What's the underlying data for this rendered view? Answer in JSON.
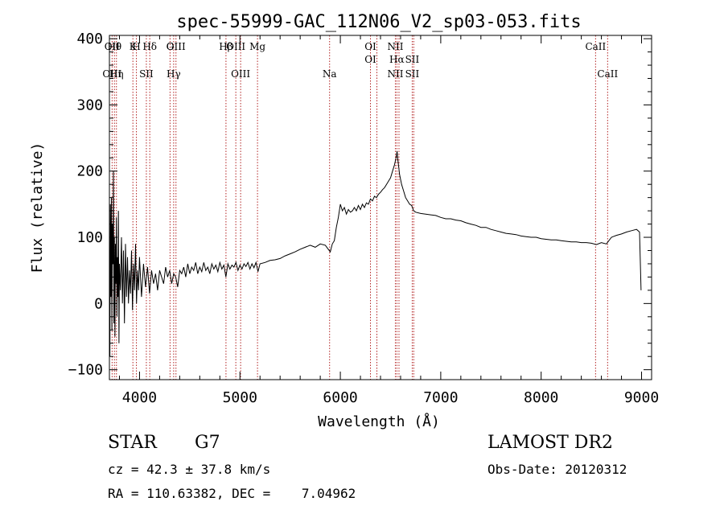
{
  "chart_data": {
    "type": "line",
    "title": "spec-55999-GAC_112N06_V2_sp03-053.fits",
    "xlabel": "Wavelength (Å)",
    "ylabel": "Flux (relative)",
    "xlim": [
      3700,
      9100
    ],
    "ylim": [
      -115,
      405
    ],
    "xticks": [
      4000,
      5000,
      6000,
      7000,
      8000,
      9000
    ],
    "yticks": [
      -100,
      0,
      100,
      200,
      300,
      400
    ],
    "grid": false,
    "series": [
      {
        "values": [
          [
            3700,
            40
          ],
          [
            3705,
            -80
          ],
          [
            3710,
            150
          ],
          [
            3715,
            10
          ],
          [
            3720,
            160
          ],
          [
            3725,
            -40
          ],
          [
            3730,
            120
          ],
          [
            3735,
            60
          ],
          [
            3740,
            200
          ],
          [
            3745,
            -30
          ],
          [
            3750,
            100
          ],
          [
            3755,
            -50
          ],
          [
            3760,
            90
          ],
          [
            3765,
            30
          ],
          [
            3770,
            130
          ],
          [
            3775,
            -20
          ],
          [
            3780,
            70
          ],
          [
            3785,
            10
          ],
          [
            3790,
            140
          ],
          [
            3795,
            -60
          ],
          [
            3800,
            60
          ],
          [
            3810,
            20
          ],
          [
            3820,
            100
          ],
          [
            3830,
            0
          ],
          [
            3840,
            80
          ],
          [
            3850,
            -30
          ],
          [
            3860,
            90
          ],
          [
            3870,
            10
          ],
          [
            3880,
            70
          ],
          [
            3890,
            0
          ],
          [
            3900,
            50
          ],
          [
            3910,
            15
          ],
          [
            3920,
            80
          ],
          [
            3930,
            -10
          ],
          [
            3940,
            60
          ],
          [
            3950,
            20
          ],
          [
            3960,
            90
          ],
          [
            3970,
            0
          ],
          [
            3980,
            50
          ],
          [
            3990,
            20
          ],
          [
            4000,
            70
          ],
          [
            4020,
            10
          ],
          [
            4040,
            60
          ],
          [
            4060,
            25
          ],
          [
            4080,
            55
          ],
          [
            4100,
            15
          ],
          [
            4120,
            50
          ],
          [
            4140,
            30
          ],
          [
            4160,
            45
          ],
          [
            4180,
            20
          ],
          [
            4200,
            50
          ],
          [
            4220,
            40
          ],
          [
            4240,
            30
          ],
          [
            4260,
            55
          ],
          [
            4280,
            40
          ],
          [
            4300,
            50
          ],
          [
            4320,
            30
          ],
          [
            4340,
            45
          ],
          [
            4360,
            40
          ],
          [
            4380,
            25
          ],
          [
            4400,
            50
          ],
          [
            4420,
            45
          ],
          [
            4440,
            55
          ],
          [
            4460,
            40
          ],
          [
            4480,
            60
          ],
          [
            4500,
            45
          ],
          [
            4520,
            55
          ],
          [
            4540,
            50
          ],
          [
            4560,
            62
          ],
          [
            4580,
            45
          ],
          [
            4600,
            55
          ],
          [
            4620,
            48
          ],
          [
            4640,
            62
          ],
          [
            4660,
            50
          ],
          [
            4680,
            55
          ],
          [
            4700,
            45
          ],
          [
            4720,
            60
          ],
          [
            4740,
            52
          ],
          [
            4760,
            58
          ],
          [
            4780,
            48
          ],
          [
            4800,
            62
          ],
          [
            4820,
            52
          ],
          [
            4840,
            58
          ],
          [
            4860,
            40
          ],
          [
            4880,
            60
          ],
          [
            4900,
            52
          ],
          [
            4920,
            58
          ],
          [
            4940,
            55
          ],
          [
            4960,
            62
          ],
          [
            4980,
            50
          ],
          [
            5000,
            58
          ],
          [
            5020,
            52
          ],
          [
            5040,
            60
          ],
          [
            5060,
            56
          ],
          [
            5080,
            62
          ],
          [
            5100,
            52
          ],
          [
            5120,
            60
          ],
          [
            5140,
            54
          ],
          [
            5160,
            62
          ],
          [
            5180,
            48
          ],
          [
            5200,
            60
          ],
          [
            5250,
            62
          ],
          [
            5300,
            65
          ],
          [
            5350,
            66
          ],
          [
            5400,
            68
          ],
          [
            5450,
            72
          ],
          [
            5500,
            75
          ],
          [
            5550,
            78
          ],
          [
            5600,
            82
          ],
          [
            5650,
            85
          ],
          [
            5700,
            88
          ],
          [
            5750,
            85
          ],
          [
            5800,
            90
          ],
          [
            5850,
            88
          ],
          [
            5880,
            82
          ],
          [
            5900,
            78
          ],
          [
            5920,
            90
          ],
          [
            5940,
            95
          ],
          [
            5960,
            115
          ],
          [
            5980,
            130
          ],
          [
            6000,
            150
          ],
          [
            6020,
            140
          ],
          [
            6040,
            145
          ],
          [
            6060,
            135
          ],
          [
            6080,
            142
          ],
          [
            6100,
            138
          ],
          [
            6120,
            140
          ],
          [
            6140,
            145
          ],
          [
            6160,
            140
          ],
          [
            6180,
            148
          ],
          [
            6200,
            142
          ],
          [
            6220,
            150
          ],
          [
            6240,
            145
          ],
          [
            6260,
            152
          ],
          [
            6280,
            150
          ],
          [
            6300,
            158
          ],
          [
            6320,
            155
          ],
          [
            6340,
            162
          ],
          [
            6360,
            160
          ],
          [
            6380,
            165
          ],
          [
            6400,
            168
          ],
          [
            6420,
            172
          ],
          [
            6440,
            175
          ],
          [
            6460,
            180
          ],
          [
            6480,
            185
          ],
          [
            6500,
            190
          ],
          [
            6520,
            200
          ],
          [
            6540,
            210
          ],
          [
            6555,
            220
          ],
          [
            6565,
            230
          ],
          [
            6575,
            215
          ],
          [
            6590,
            195
          ],
          [
            6610,
            180
          ],
          [
            6630,
            170
          ],
          [
            6650,
            160
          ],
          [
            6670,
            155
          ],
          [
            6690,
            150
          ],
          [
            6710,
            148
          ],
          [
            6730,
            140
          ],
          [
            6750,
            138
          ],
          [
            6800,
            136
          ],
          [
            6850,
            135
          ],
          [
            6900,
            134
          ],
          [
            6950,
            133
          ],
          [
            7000,
            130
          ],
          [
            7050,
            128
          ],
          [
            7100,
            128
          ],
          [
            7150,
            126
          ],
          [
            7200,
            125
          ],
          [
            7250,
            122
          ],
          [
            7300,
            120
          ],
          [
            7350,
            118
          ],
          [
            7400,
            115
          ],
          [
            7450,
            115
          ],
          [
            7500,
            112
          ],
          [
            7550,
            110
          ],
          [
            7600,
            108
          ],
          [
            7650,
            106
          ],
          [
            7700,
            105
          ],
          [
            7750,
            104
          ],
          [
            7800,
            102
          ],
          [
            7850,
            101
          ],
          [
            7900,
            100
          ],
          [
            7950,
            100
          ],
          [
            8000,
            98
          ],
          [
            8050,
            97
          ],
          [
            8100,
            96
          ],
          [
            8150,
            96
          ],
          [
            8200,
            95
          ],
          [
            8250,
            94
          ],
          [
            8300,
            93
          ],
          [
            8350,
            93
          ],
          [
            8400,
            92
          ],
          [
            8450,
            92
          ],
          [
            8500,
            91
          ],
          [
            8550,
            89
          ],
          [
            8600,
            92
          ],
          [
            8650,
            90
          ],
          [
            8700,
            100
          ],
          [
            8750,
            103
          ],
          [
            8800,
            105
          ],
          [
            8850,
            108
          ],
          [
            8900,
            110
          ],
          [
            8950,
            112
          ],
          [
            8980,
            108
          ],
          [
            8995,
            20
          ]
        ]
      }
    ],
    "lines": [
      {
        "x": 3727,
        "top": "OII",
        "bottom": "OIII"
      },
      {
        "x": 3750,
        "top": "Hθ"
      },
      {
        "x": 3770,
        "bottom": "Hη"
      },
      {
        "x": 3934,
        "top": "K"
      },
      {
        "x": 3969,
        "top": "H"
      },
      {
        "x": 4068,
        "bottom": "SII"
      },
      {
        "x": 4102,
        "top": "Hδ"
      },
      {
        "x": 4304,
        "top": "G"
      },
      {
        "x": 4340,
        "bottom": "Hγ"
      },
      {
        "x": 4363,
        "top": "OIII"
      },
      {
        "x": 4861,
        "top": "Hβ"
      },
      {
        "x": 4959,
        "top": "OIII"
      },
      {
        "x": 5007,
        "bottom": "OIII"
      },
      {
        "x": 5175,
        "top": "Mg"
      },
      {
        "x": 5893,
        "bottom": "Na"
      },
      {
        "x": 6300,
        "top": "OI",
        "mid": "OI"
      },
      {
        "x": 6364
      },
      {
        "x": 6548,
        "top": "NII",
        "bottom": "NII"
      },
      {
        "x": 6563,
        "mid": "Hα"
      },
      {
        "x": 6584
      },
      {
        "x": 6716,
        "mid": "SII",
        "bottom": "SII"
      },
      {
        "x": 6731
      },
      {
        "x": 8542,
        "top": "CaII"
      },
      {
        "x": 8662,
        "bottom": "CaII"
      }
    ]
  },
  "info": {
    "class": "STAR",
    "subclass": "G7",
    "survey": "LAMOST DR2",
    "cz": "cz = 42.3 ± 37.8 km/s",
    "obs_date": "Obs-Date: 20120312",
    "coords": "RA = 110.63382, DEC =    7.04962"
  },
  "colors": {
    "spectrum": "#000000",
    "line_markers": "#b22222",
    "axes": "#000000"
  }
}
